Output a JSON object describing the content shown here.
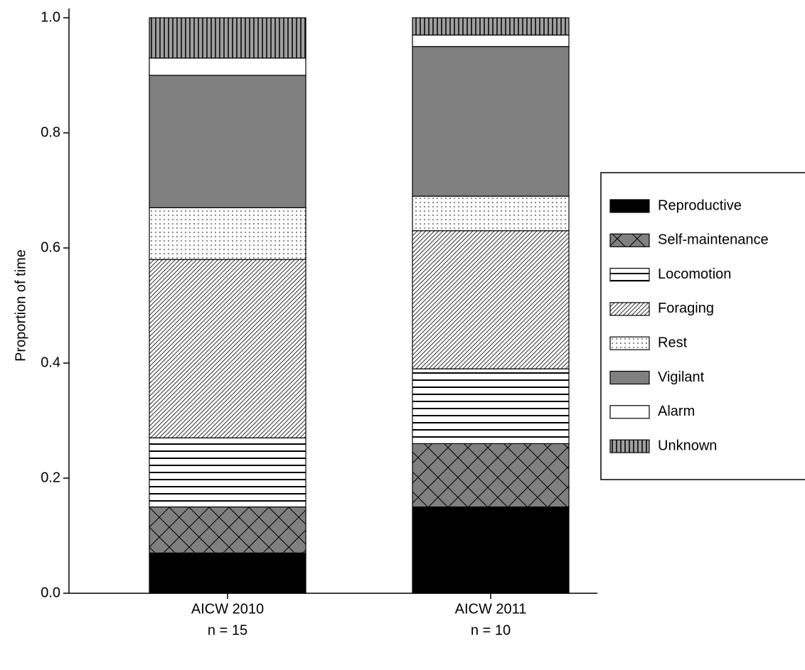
{
  "chart_data": {
    "type": "stacked_bar",
    "ylabel": "Proportion of time",
    "categories": [
      [
        "AICW 2010",
        "n = 15"
      ],
      [
        "AICW 2011",
        "n = 10"
      ]
    ],
    "ylim": [
      0,
      1.0
    ],
    "yticks": [
      {
        "value": 0,
        "label": "0.0"
      },
      {
        "value": 0.2,
        "label": "0.2"
      },
      {
        "value": 0.4,
        "label": "0.4"
      },
      {
        "value": 0.6,
        "label": "0.6"
      },
      {
        "value": 0.8,
        "label": "0.8"
      },
      {
        "value": 1.0,
        "label": "1.0"
      }
    ],
    "legend_position": "right",
    "series": [
      {
        "name": "Reproductive",
        "color": "#000000",
        "pattern": "solid",
        "values": [
          0.07,
          0.15
        ]
      },
      {
        "name": "Self-maintenance",
        "color": "#808080",
        "pattern": "crosshatch",
        "values": [
          0.08,
          0.11
        ]
      },
      {
        "name": "Locomotion",
        "color": "#ffffff",
        "pattern": "hlines",
        "values": [
          0.12,
          0.13
        ]
      },
      {
        "name": "Foraging",
        "color": "#ffffff",
        "pattern": "diagonal",
        "values": [
          0.31,
          0.24
        ]
      },
      {
        "name": "Rest",
        "color": "#ffffff",
        "pattern": "dots",
        "values": [
          0.09,
          0.06
        ]
      },
      {
        "name": "Vigilant",
        "color": "#808080",
        "pattern": "solid",
        "values": [
          0.23,
          0.26
        ]
      },
      {
        "name": "Alarm",
        "color": "#ffffff",
        "pattern": "solid",
        "values": [
          0.03,
          0.02
        ]
      },
      {
        "name": "Unknown",
        "color": "#a0a0a0",
        "pattern": "vlines",
        "values": [
          0.07,
          0.03
        ]
      }
    ]
  }
}
